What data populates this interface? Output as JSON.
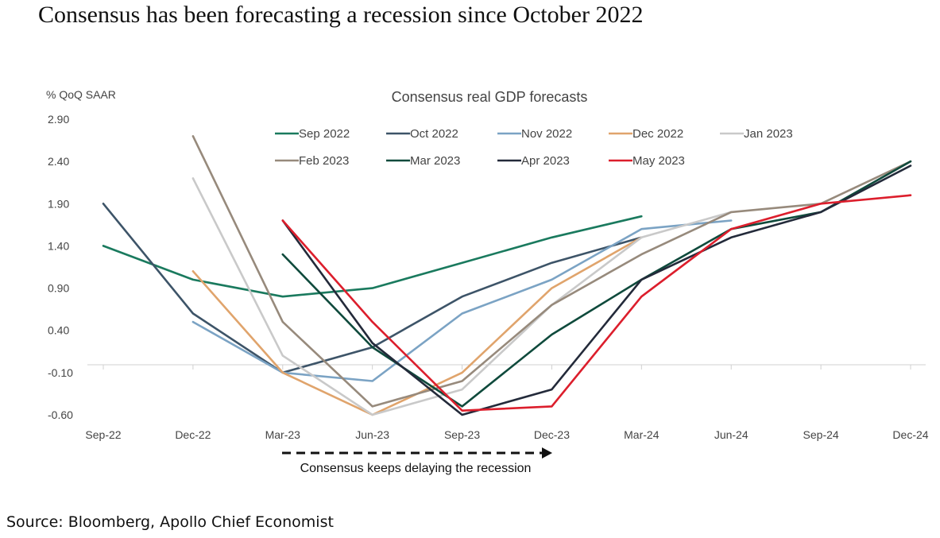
{
  "headline": "Consensus has been forecasting a recession since October 2022",
  "source": "Source: Bloomberg, Apollo Chief Economist",
  "chart_data": {
    "type": "line",
    "title": "Consensus real GDP forecasts",
    "ylabel": "% QoQ SAAR",
    "xlabel": "",
    "categories": [
      "Sep-22",
      "Dec-22",
      "Mar-23",
      "Jun-23",
      "Sep-23",
      "Dec-23",
      "Mar-24",
      "Jun-24",
      "Sep-24",
      "Dec-24"
    ],
    "yticks": [
      "2.90",
      "2.40",
      "1.90",
      "1.40",
      "0.90",
      "0.40",
      "-0.10",
      "-0.60"
    ],
    "ylim": [
      -0.6,
      2.9
    ],
    "legend_position": "top",
    "annotation": "Consensus keeps delaying the recession",
    "series": [
      {
        "name": "Sep 2022",
        "color": "#1a7a5e",
        "values": [
          1.4,
          1.0,
          0.8,
          0.9,
          1.2,
          1.5,
          1.75,
          null,
          null,
          null
        ]
      },
      {
        "name": "Oct 2022",
        "color": "#3d5468",
        "values": [
          null,
          null,
          null,
          null,
          null,
          null,
          null,
          null,
          null,
          null
        ],
        "points": [
          [
            0,
            1.9
          ],
          [
            1,
            0.6
          ],
          [
            2,
            -0.1
          ],
          [
            3,
            0.2
          ],
          [
            4,
            0.8
          ],
          [
            5,
            1.2
          ],
          [
            6,
            1.5
          ]
        ]
      },
      {
        "name": "Nov 2022",
        "color": "#7ba3c4",
        "points": [
          [
            1,
            0.5
          ],
          [
            2,
            -0.1
          ],
          [
            3,
            -0.2
          ],
          [
            4,
            0.6
          ],
          [
            5,
            1.0
          ],
          [
            6,
            1.6
          ],
          [
            7,
            1.7
          ]
        ]
      },
      {
        "name": "Dec 2022",
        "color": "#e0a46c",
        "points": [
          [
            1,
            1.1
          ],
          [
            2,
            -0.1
          ],
          [
            3,
            -0.6
          ],
          [
            4,
            -0.1
          ],
          [
            5,
            0.9
          ],
          [
            6,
            1.5
          ]
        ]
      },
      {
        "name": "Jan 2023",
        "color": "#c9c9c9",
        "points": [
          [
            1,
            2.2
          ],
          [
            2,
            0.1
          ],
          [
            3,
            -0.6
          ],
          [
            4,
            -0.3
          ],
          [
            5,
            0.7
          ],
          [
            6,
            1.5
          ],
          [
            7,
            1.8
          ]
        ]
      },
      {
        "name": "Feb 2023",
        "color": "#978a7c",
        "points": [
          [
            1,
            2.7
          ],
          [
            2,
            0.5
          ],
          [
            3,
            -0.5
          ],
          [
            4,
            -0.2
          ],
          [
            5,
            0.7
          ],
          [
            6,
            1.3
          ],
          [
            7,
            1.8
          ],
          [
            8,
            1.9
          ],
          [
            9,
            2.4
          ]
        ]
      },
      {
        "name": "Mar 2023",
        "color": "#0f4a3c",
        "points": [
          [
            2,
            1.3
          ],
          [
            3,
            0.2
          ],
          [
            4,
            -0.5
          ],
          [
            5,
            0.35
          ],
          [
            6,
            1.0
          ],
          [
            7,
            1.6
          ],
          [
            8,
            1.8
          ],
          [
            9,
            2.4
          ]
        ]
      },
      {
        "name": "Apr 2023",
        "color": "#232a3a",
        "points": [
          [
            2,
            1.7
          ],
          [
            3,
            0.25
          ],
          [
            4,
            -0.6
          ],
          [
            5,
            -0.3
          ],
          [
            6,
            1.0
          ],
          [
            7,
            1.5
          ],
          [
            8,
            1.8
          ],
          [
            9,
            2.35
          ]
        ]
      },
      {
        "name": "May 2023",
        "color": "#dc1e2c",
        "points": [
          [
            2,
            1.7
          ],
          [
            3,
            0.5
          ],
          [
            4,
            -0.55
          ],
          [
            5,
            -0.5
          ],
          [
            6,
            0.8
          ],
          [
            7,
            1.6
          ],
          [
            8,
            1.9
          ],
          [
            9,
            2.0
          ]
        ]
      }
    ]
  }
}
